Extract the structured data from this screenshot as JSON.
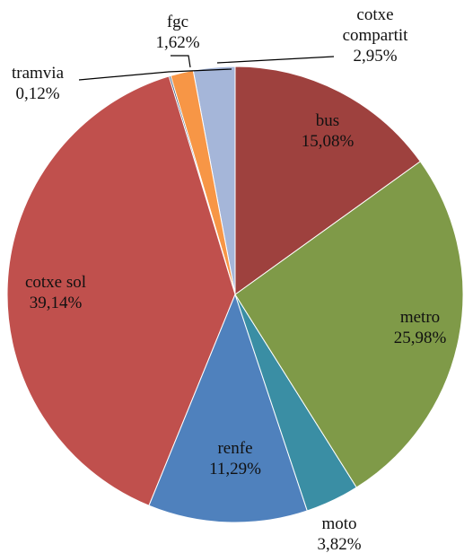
{
  "chart_data": {
    "type": "pie",
    "categories": [
      "bus",
      "metro",
      "moto",
      "renfe",
      "cotxe sol",
      "tramvia",
      "fgc",
      "cotxe compartit"
    ],
    "values": [
      15.08,
      25.98,
      3.82,
      11.29,
      39.14,
      0.12,
      1.62,
      2.95
    ],
    "value_labels": [
      "15,08%",
      "25,98%",
      "3,82%",
      "11,29%",
      "39,14%",
      "0,12%",
      "1,62%",
      "2,95%"
    ],
    "colors": [
      "#9e413e",
      "#7f9a48",
      "#3a8ea4",
      "#4f81bd",
      "#c0504d",
      "#2c4d75",
      "#f79646",
      "#a5b6d9"
    ]
  }
}
